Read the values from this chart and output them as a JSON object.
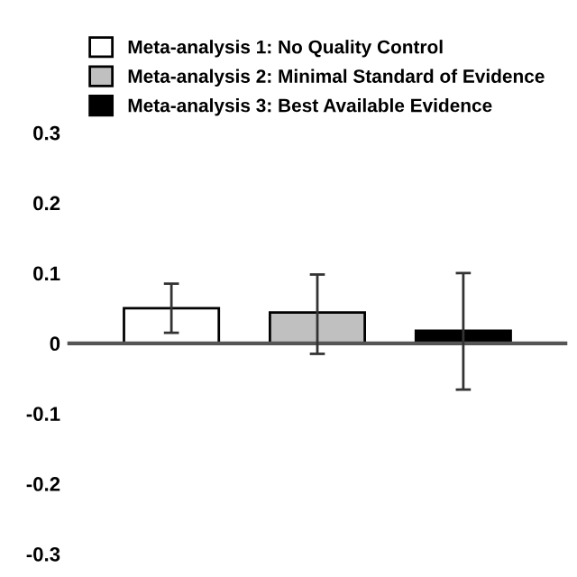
{
  "chart_data": {
    "type": "bar",
    "categories": [
      null,
      null,
      null
    ],
    "series": [
      {
        "name": "Meta-analysis 1: No Quality Control",
        "color": "#ffffff",
        "values": [
          0.05,
          null,
          null
        ],
        "errors": [
          [
            0.015,
            0.085
          ],
          null,
          null
        ]
      },
      {
        "name": "Meta-analysis 2: Minimal Standard of Evidence",
        "color": "#c0c0c0",
        "values": [
          null,
          0.044,
          null
        ],
        "errors": [
          null,
          [
            -0.015,
            0.098
          ],
          null
        ]
      },
      {
        "name": "Meta-analysis 3: Best Available Evidence",
        "color": "#000000",
        "values": [
          null,
          null,
          0.018
        ],
        "errors": [
          null,
          null,
          [
            -0.066,
            0.1
          ]
        ]
      }
    ],
    "ylim": [
      -0.3,
      0.3
    ],
    "yticks": [
      -0.3,
      -0.2,
      -0.1,
      0,
      0.1,
      0.2,
      0.3
    ],
    "legend": "top"
  }
}
